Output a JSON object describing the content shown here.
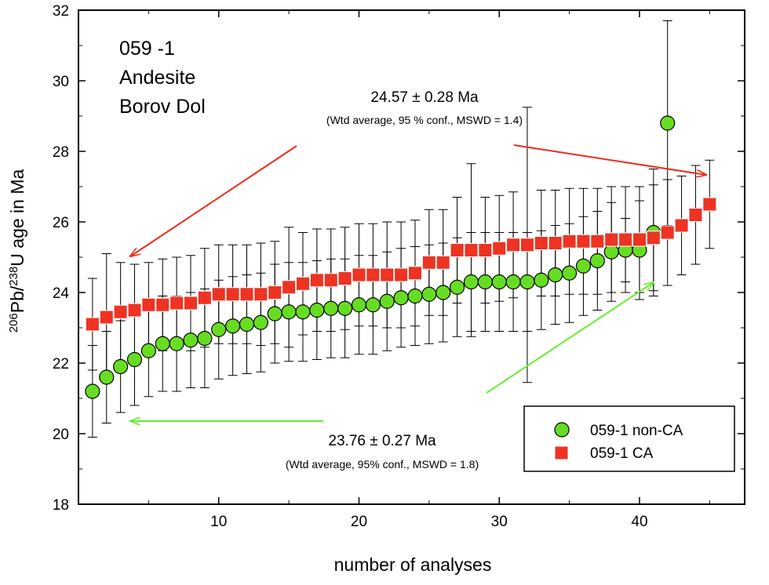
{
  "chart_data": {
    "type": "scatter",
    "xlabel": "number of analyses",
    "ylabel_parts": {
      "pre1": "206",
      "mid1": "Pb/",
      "pre2": "238",
      "post": "U age in Ma"
    },
    "xlim": [
      0,
      47.5
    ],
    "ylim": [
      18,
      32
    ],
    "xticks": [
      10,
      20,
      30,
      40
    ],
    "yticks": [
      18,
      20,
      22,
      24,
      26,
      28,
      30,
      32
    ],
    "sample_label": [
      "059 -1",
      "Andesite",
      "Borov Dol"
    ],
    "annotations": {
      "ca_age": "24.57 ± 0.28 Ma",
      "ca_note": "(Wtd average, 95 % conf., MSWD = 1.4)",
      "nonca_age": "23.76 ± 0.27 Ma",
      "nonca_note": "(Wtd average, 95% conf., MSWD = 1.8)"
    },
    "legend": [
      "059-1 non-CA",
      "059-1 CA"
    ],
    "series": [
      {
        "name": "059-1 non-CA",
        "marker": "circle",
        "color": "#66dd22",
        "x": [
          1,
          2,
          3,
          4,
          5,
          6,
          7,
          8,
          9,
          10,
          11,
          12,
          13,
          14,
          15,
          16,
          17,
          18,
          19,
          20,
          21,
          22,
          23,
          24,
          25,
          26,
          27,
          28,
          29,
          30,
          31,
          32,
          33,
          34,
          35,
          36,
          37,
          38,
          39,
          40,
          41,
          42
        ],
        "y": [
          21.2,
          21.6,
          21.9,
          22.1,
          22.35,
          22.55,
          22.55,
          22.65,
          22.7,
          22.95,
          23.05,
          23.1,
          23.15,
          23.4,
          23.45,
          23.45,
          23.5,
          23.55,
          23.55,
          23.65,
          23.65,
          23.75,
          23.85,
          23.9,
          23.95,
          24.0,
          24.15,
          24.3,
          24.3,
          24.3,
          24.3,
          24.3,
          24.35,
          24.5,
          24.55,
          24.75,
          24.9,
          25.15,
          25.2,
          25.2,
          25.7,
          28.8
        ],
        "yerr": [
          1.3,
          1.3,
          1.3,
          1.3,
          1.3,
          1.35,
          1.35,
          1.35,
          1.4,
          1.4,
          1.4,
          1.4,
          1.4,
          1.4,
          1.4,
          1.4,
          1.4,
          1.4,
          1.4,
          1.4,
          1.4,
          1.4,
          1.4,
          1.4,
          1.4,
          1.4,
          1.4,
          1.4,
          1.4,
          1.4,
          1.4,
          1.4,
          1.4,
          1.4,
          1.4,
          1.4,
          1.4,
          1.4,
          0.9,
          1.4,
          1.8,
          2.9
        ]
      },
      {
        "name": "059-1 CA",
        "marker": "square",
        "color": "#ee3322",
        "x": [
          1,
          2,
          3,
          4,
          5,
          6,
          7,
          8,
          9,
          10,
          11,
          12,
          13,
          14,
          15,
          16,
          17,
          18,
          19,
          20,
          21,
          22,
          23,
          24,
          25,
          26,
          27,
          28,
          29,
          30,
          31,
          32,
          33,
          34,
          35,
          36,
          37,
          38,
          39,
          40,
          41,
          42,
          43,
          44,
          45
        ],
        "y": [
          23.1,
          23.3,
          23.45,
          23.5,
          23.65,
          23.65,
          23.7,
          23.7,
          23.85,
          23.95,
          23.95,
          23.95,
          23.95,
          24.0,
          24.15,
          24.25,
          24.35,
          24.35,
          24.4,
          24.5,
          24.5,
          24.5,
          24.5,
          24.55,
          24.85,
          24.85,
          25.2,
          25.2,
          25.2,
          25.25,
          25.35,
          25.35,
          25.4,
          25.4,
          25.45,
          25.45,
          25.45,
          25.5,
          25.5,
          25.5,
          25.55,
          25.7,
          25.9,
          26.2,
          26.5
        ],
        "yerr": [
          1.3,
          1.8,
          1.4,
          1.3,
          1.2,
          1.3,
          1.3,
          1.35,
          1.4,
          1.4,
          1.4,
          1.4,
          1.45,
          1.45,
          1.7,
          1.45,
          1.45,
          1.45,
          1.45,
          1.45,
          1.45,
          1.5,
          1.5,
          1.5,
          1.5,
          1.5,
          1.5,
          2.45,
          1.5,
          1.5,
          1.5,
          3.9,
          1.5,
          1.5,
          1.5,
          1.5,
          1.5,
          1.5,
          1.5,
          1.5,
          1.5,
          1.5,
          1.4,
          1.4,
          1.25
        ]
      }
    ]
  }
}
